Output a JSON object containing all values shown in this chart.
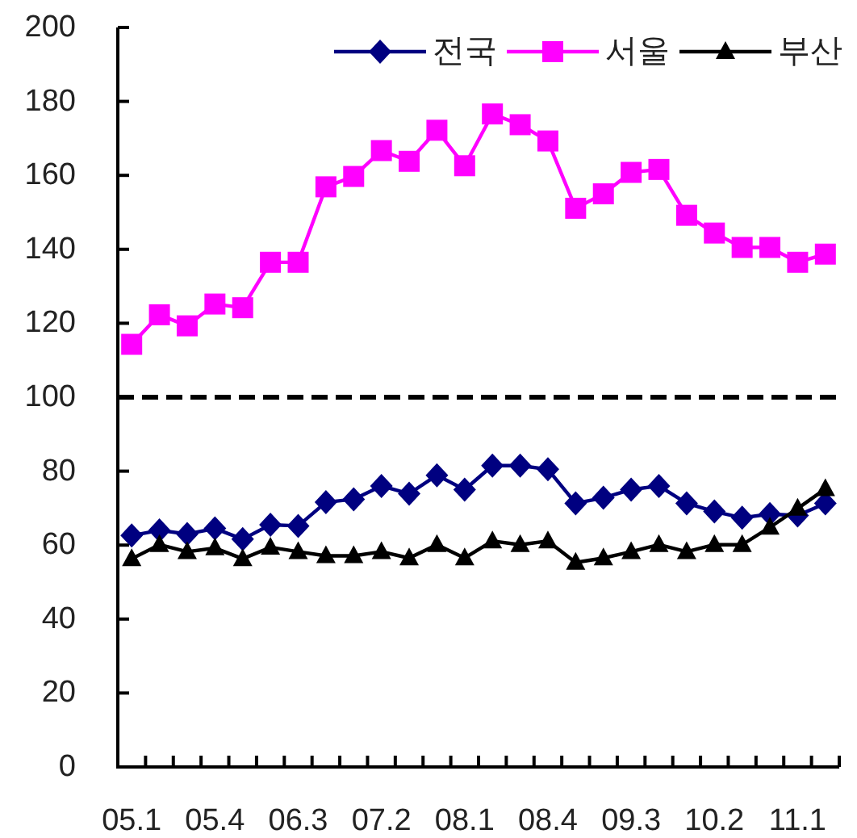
{
  "chart_data": {
    "type": "line",
    "categories": [
      "05.1",
      null,
      null,
      "05.4",
      null,
      null,
      "06.3",
      null,
      null,
      "07.2",
      null,
      null,
      "08.1",
      null,
      null,
      "08.4",
      null,
      null,
      "09.3",
      null,
      null,
      "10.2",
      null,
      null,
      "11.1",
      null
    ],
    "series": [
      {
        "name": "전국",
        "color": "#000080",
        "marker": "diamond",
        "values": [
          62.6,
          64.0,
          63.0,
          64.5,
          61.6,
          65.5,
          65.2,
          71.6,
          72.4,
          76.0,
          73.9,
          78.9,
          75.0,
          81.5,
          81.5,
          80.5,
          71.3,
          72.8,
          75.0,
          76.0,
          71.3,
          69.1,
          67.4,
          68.4,
          68.0,
          71.3
        ]
      },
      {
        "name": "서울",
        "color": "#ff00ff",
        "marker": "square",
        "values": [
          114.3,
          122.3,
          119.3,
          125.2,
          124.2,
          136.5,
          136.5,
          156.9,
          159.7,
          166.7,
          163.8,
          172.2,
          162.6,
          176.6,
          173.7,
          169.3,
          151.1,
          155.0,
          160.8,
          161.6,
          149.2,
          144.4,
          140.5,
          140.5,
          136.5,
          138.7
        ]
      },
      {
        "name": "부산",
        "color": "#000000",
        "marker": "triangle",
        "values": [
          56.3,
          60.1,
          58.2,
          59.2,
          56.3,
          59.4,
          58.2,
          57.1,
          57.1,
          58.2,
          56.5,
          60.1,
          56.5,
          61.1,
          60.1,
          61.1,
          55.3,
          56.5,
          58.2,
          60.1,
          58.2,
          60.1,
          60.1,
          64.8,
          69.9,
          75.2
        ]
      }
    ],
    "ylim": [
      0,
      200
    ],
    "yticks": [
      0,
      20,
      40,
      60,
      80,
      100,
      120,
      140,
      160,
      180,
      200
    ],
    "ref_lines": [
      {
        "axis": "y",
        "value": 100,
        "color": "#000000",
        "line_style": "dashed"
      }
    ],
    "legend": "top right"
  }
}
